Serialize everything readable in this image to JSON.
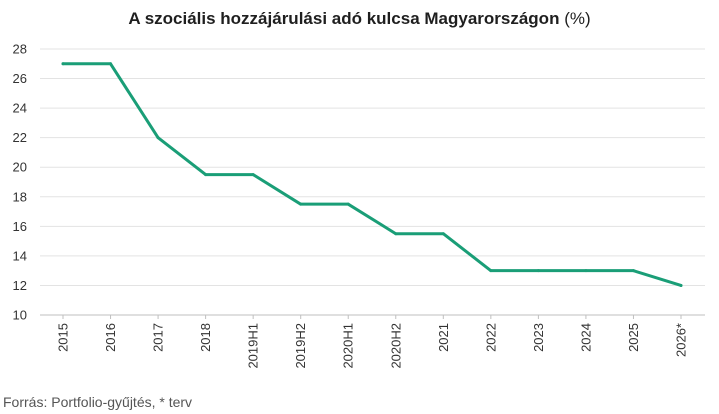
{
  "chart_data": {
    "type": "line",
    "title": "A szociális hozzájárulási adó kulcsa Magyarországon",
    "title_unit": "(%)",
    "categories": [
      "2015",
      "2016",
      "2017",
      "2018",
      "2019H1",
      "2019H2",
      "2020H1",
      "2020H2",
      "2021",
      "2022",
      "2023",
      "2024",
      "2025",
      "2026*"
    ],
    "series": [
      {
        "values": [
          27,
          27,
          22,
          19.5,
          19.5,
          17.5,
          17.5,
          15.5,
          15.5,
          13,
          13,
          13,
          13,
          12
        ]
      }
    ],
    "ylim": [
      10,
      28
    ],
    "yticks": [
      10,
      12,
      14,
      16,
      18,
      20,
      22,
      24,
      26,
      28
    ],
    "grid": true,
    "line_color": "#1a9e77"
  },
  "source": "Forrás: Portfolio-gyűjtés, * terv"
}
